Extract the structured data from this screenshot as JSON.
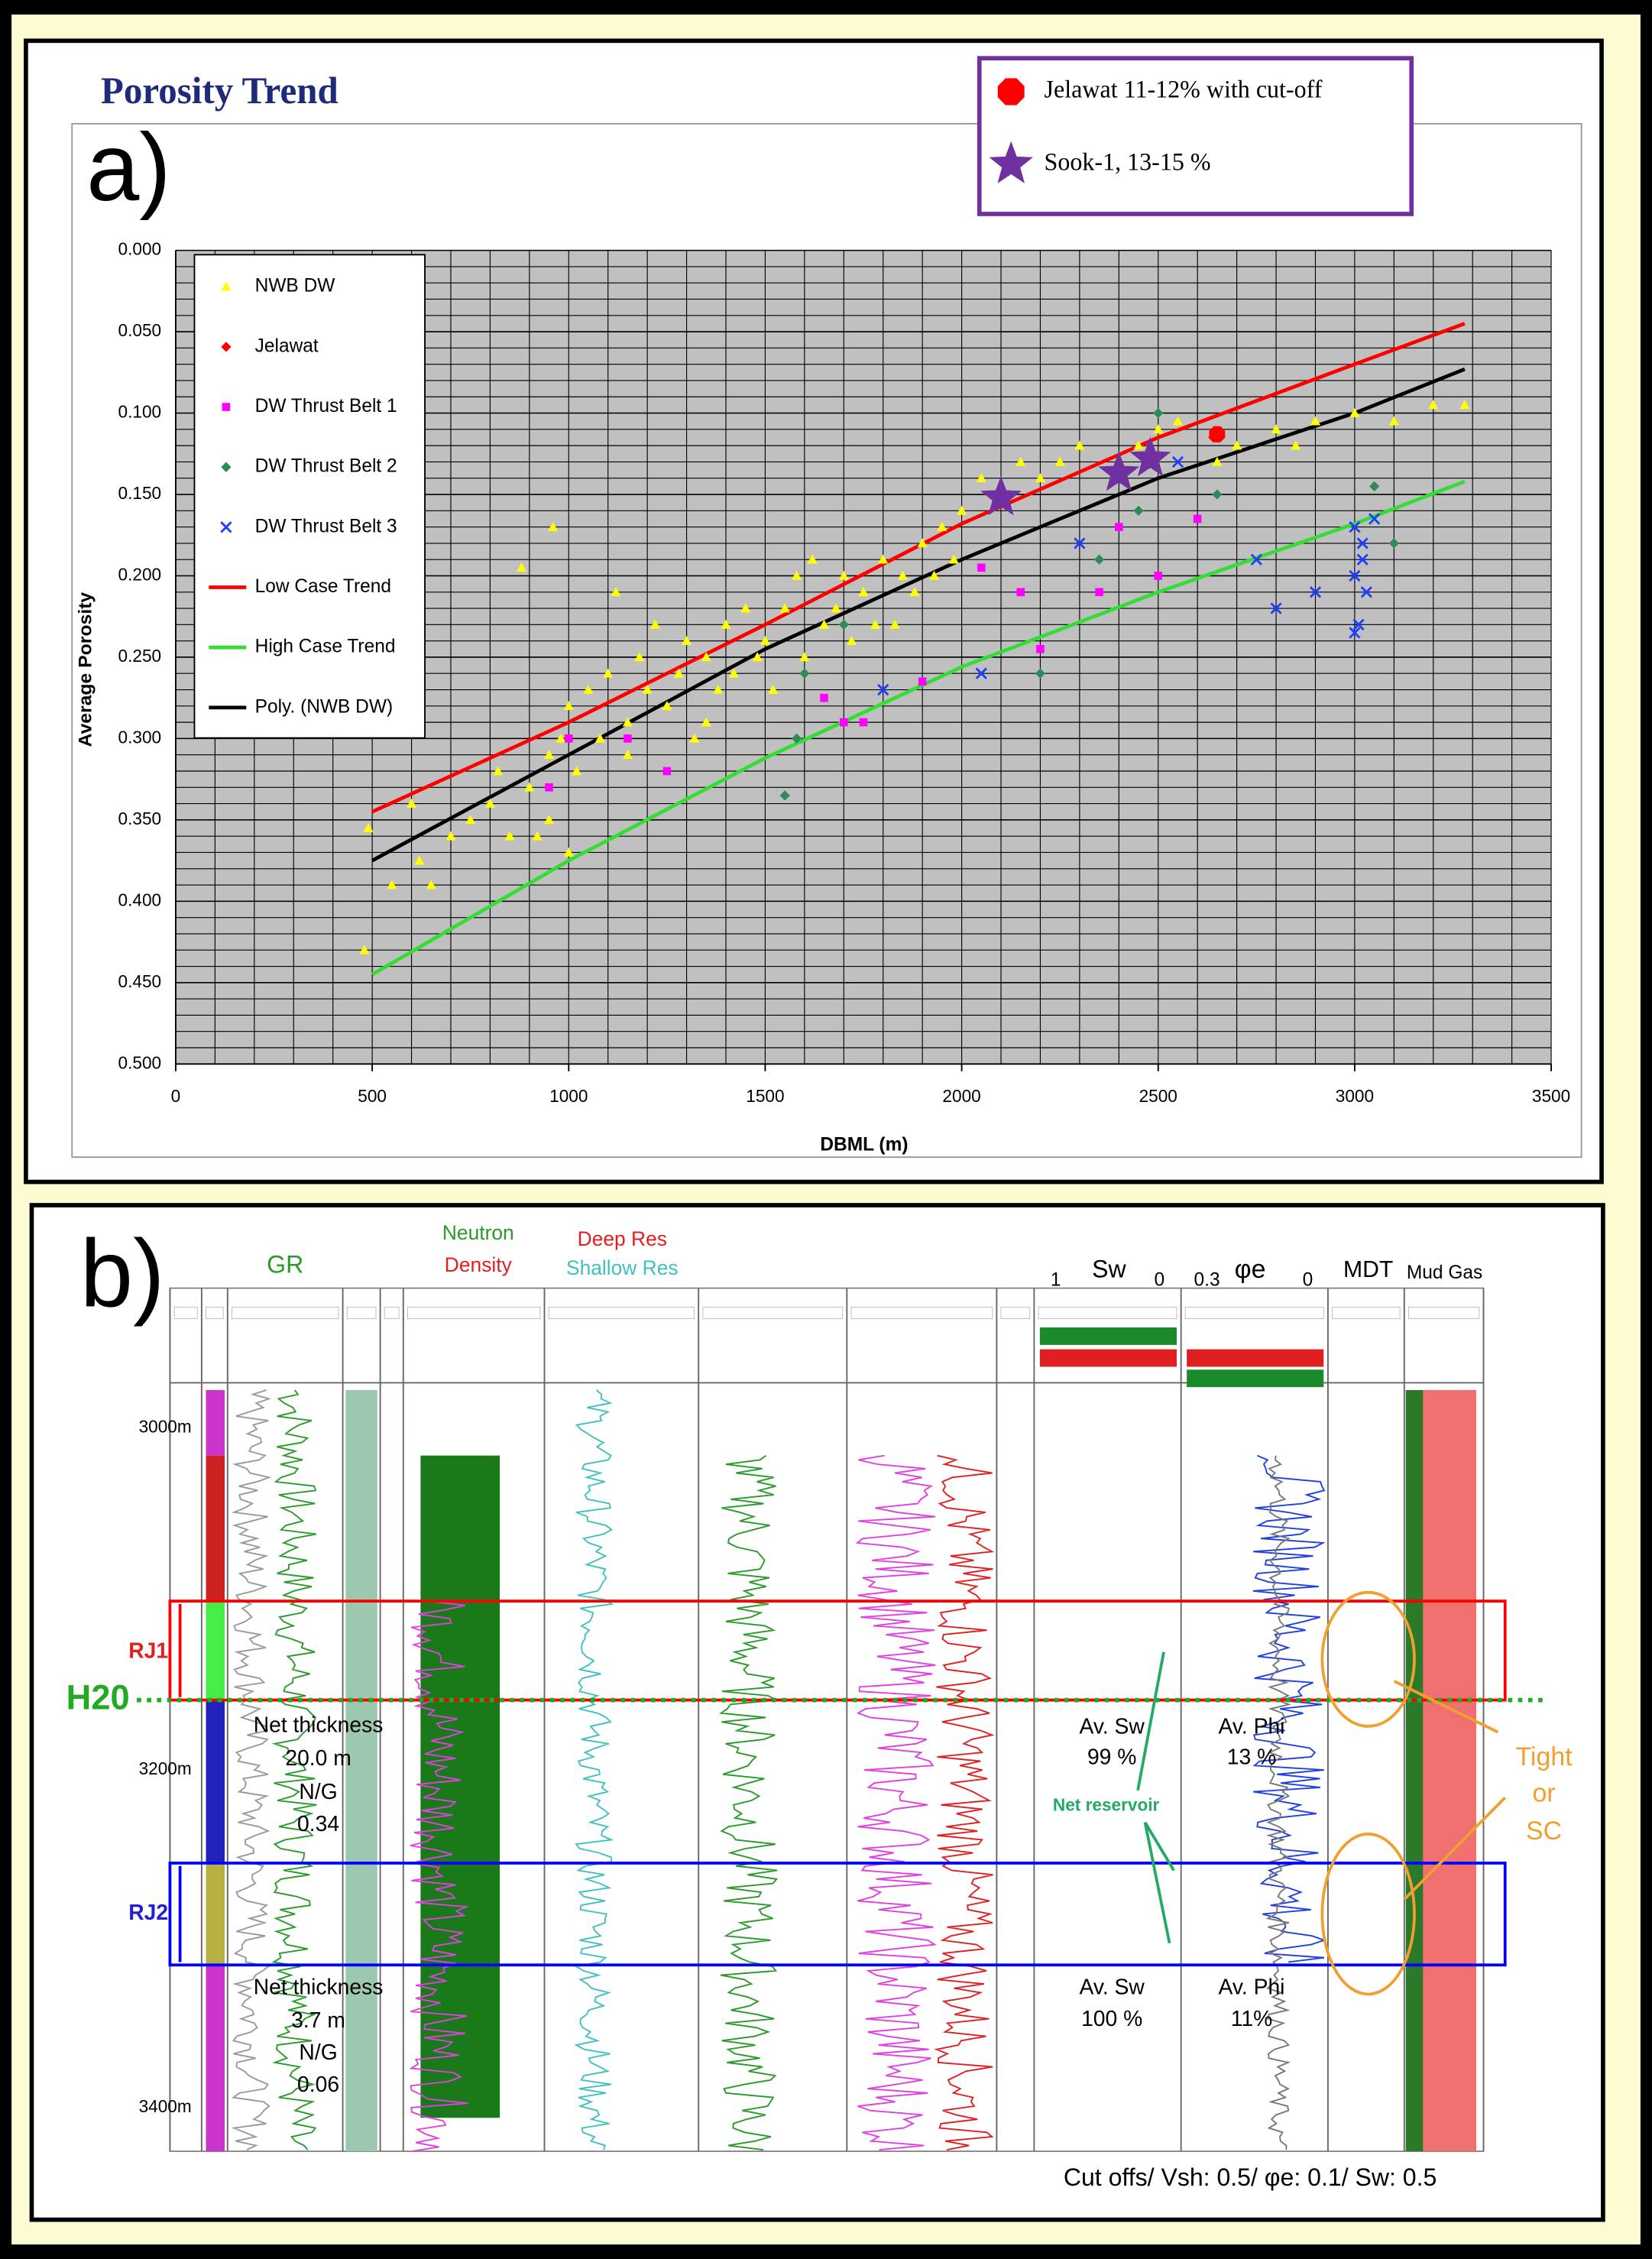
{
  "chart_data": {
    "type": "scatter",
    "panel_label": "a)",
    "title": "Porosity Trend",
    "x_label": "DBML (m)",
    "y_label": "Average Porosity",
    "xlim": [
      0,
      3500
    ],
    "xticks": [
      0,
      500,
      1000,
      1500,
      2000,
      2500,
      3000,
      3500
    ],
    "ylim": [
      0,
      0.5
    ],
    "y_reversed": true,
    "yticks": [
      {
        "value": 0,
        "label": "0.000"
      },
      {
        "value": 0.05,
        "label": "0.050"
      },
      {
        "value": 0.1,
        "label": "0.100"
      },
      {
        "value": 0.15,
        "label": "0.150"
      },
      {
        "value": 0.2,
        "label": "0.200"
      },
      {
        "value": 0.25,
        "label": "0.250"
      },
      {
        "value": 0.3,
        "label": "0.300"
      },
      {
        "value": 0.35,
        "label": "0.350"
      },
      {
        "value": 0.4,
        "label": "0.400"
      },
      {
        "value": 0.45,
        "label": "0.450"
      },
      {
        "value": 0.5,
        "label": "0.500"
      }
    ],
    "grid": true,
    "minor_grid": {
      "x": 100,
      "y": 0.01
    },
    "series": [
      {
        "name": "NWB DW",
        "color": "#ffff00",
        "marker": "triangle",
        "legend": "upper-left",
        "x": [
          480,
          490,
          550,
          600,
          620,
          650,
          700,
          750,
          800,
          820,
          850,
          880,
          900,
          920,
          950,
          960,
          980,
          1000,
          1020,
          1050,
          1080,
          1100,
          1120,
          1150,
          1180,
          1200,
          1220,
          1250,
          1280,
          1300,
          1320,
          1350,
          1380,
          1400,
          1420,
          1450,
          1480,
          1500,
          1520,
          1550,
          1580,
          1600,
          1620,
          1650,
          1680,
          1700,
          1720,
          1750,
          1780,
          1800,
          1830,
          1850,
          1880,
          1900,
          1930,
          1950,
          1980,
          2000,
          2050,
          2100,
          2150,
          2200,
          2250,
          2300,
          2400,
          2450,
          2500,
          2550,
          2650,
          2700,
          2800,
          2850,
          2900,
          3000,
          3100,
          3200,
          3280,
          950,
          1150,
          1350,
          1000
        ],
        "values": [
          0.43,
          0.355,
          0.39,
          0.34,
          0.375,
          0.39,
          0.36,
          0.35,
          0.34,
          0.32,
          0.36,
          0.195,
          0.33,
          0.36,
          0.31,
          0.17,
          0.3,
          0.28,
          0.32,
          0.27,
          0.3,
          0.26,
          0.21,
          0.29,
          0.25,
          0.27,
          0.23,
          0.28,
          0.26,
          0.24,
          0.3,
          0.25,
          0.27,
          0.23,
          0.26,
          0.22,
          0.25,
          0.24,
          0.27,
          0.22,
          0.2,
          0.25,
          0.19,
          0.23,
          0.22,
          0.2,
          0.24,
          0.21,
          0.23,
          0.19,
          0.23,
          0.2,
          0.21,
          0.18,
          0.2,
          0.17,
          0.19,
          0.16,
          0.14,
          0.15,
          0.13,
          0.14,
          0.13,
          0.12,
          0.14,
          0.12,
          0.11,
          0.105,
          0.13,
          0.12,
          0.11,
          0.12,
          0.105,
          0.1,
          0.105,
          0.095,
          0.095,
          0.35,
          0.31,
          0.29,
          0.37
        ]
      },
      {
        "name": "Jelawat",
        "color": "#ff0000",
        "marker": "diamond",
        "legend": "upper-left",
        "x": [
          2640
        ],
        "values": [
          0.115
        ]
      },
      {
        "name": "DW Thrust Belt 1",
        "color": "#ff00ff",
        "marker": "square",
        "legend": "upper-left",
        "x": [
          950,
          1000,
          1150,
          1250,
          1650,
          1700,
          1750,
          1900,
          2050,
          2150,
          2200,
          2350,
          2400,
          2500,
          2600
        ],
        "values": [
          0.33,
          0.3,
          0.3,
          0.32,
          0.275,
          0.29,
          0.29,
          0.265,
          0.195,
          0.21,
          0.245,
          0.21,
          0.17,
          0.2,
          0.165
        ]
      },
      {
        "name": "DW Thrust Belt 2",
        "color": "#2e8b57",
        "marker": "diamond",
        "legend": "upper-left",
        "x": [
          1550,
          1580,
          1600,
          1700,
          2200,
          2350,
          2450,
          2500,
          2650,
          3050,
          3100
        ],
        "values": [
          0.335,
          0.3,
          0.26,
          0.23,
          0.26,
          0.19,
          0.16,
          0.1,
          0.15,
          0.145,
          0.18
        ]
      },
      {
        "name": "DW Thrust Belt 3",
        "color": "#1f3fff",
        "marker": "x",
        "legend": "upper-left",
        "x": [
          1800,
          2050,
          2300,
          2550,
          2750,
          2800,
          2900,
          3000,
          3000,
          3010,
          3020,
          3020,
          3030,
          3050,
          3000
        ],
        "values": [
          0.27,
          0.26,
          0.18,
          0.13,
          0.19,
          0.22,
          0.21,
          0.17,
          0.2,
          0.23,
          0.18,
          0.19,
          0.21,
          0.165,
          0.235
        ]
      },
      {
        "name": "Low Case Trend",
        "color": "#ff0000",
        "marker": "line",
        "legend": "upper-left",
        "x": [
          500,
          1000,
          1500,
          2000,
          2500,
          3000,
          3280
        ],
        "values": [
          0.345,
          0.29,
          0.23,
          0.168,
          0.115,
          0.07,
          0.045
        ]
      },
      {
        "name": "High Case Trend",
        "color": "#33dd33",
        "marker": "line",
        "legend": "upper-left",
        "x": [
          500,
          1000,
          1500,
          2000,
          2500,
          3000,
          3280
        ],
        "values": [
          0.445,
          0.375,
          0.312,
          0.256,
          0.21,
          0.168,
          0.142
        ]
      },
      {
        "name": "Poly. (NWB DW)",
        "color": "#000000",
        "marker": "line",
        "legend": "upper-left",
        "x": [
          500,
          1000,
          1500,
          2000,
          2500,
          3000,
          3280
        ],
        "values": [
          0.375,
          0.31,
          0.245,
          0.19,
          0.14,
          0.1,
          0.073
        ]
      },
      {
        "name": "Jelawat 11-12% with cut-off",
        "color": "#ff0000",
        "marker": "hexagon",
        "legend": "top-right",
        "x": [
          2650
        ],
        "values": [
          0.113
        ]
      },
      {
        "name": "Sook-1, 13-15 %",
        "color": "#7030a0",
        "marker": "star",
        "legend": "top-right",
        "x": [
          2100,
          2400,
          2480
        ],
        "values": [
          0.152,
          0.137,
          0.128
        ]
      }
    ]
  },
  "log_panel": {
    "panel_label": "b)",
    "headers": [
      "GR",
      "Neutron",
      "Density",
      "Deep Res",
      "Shallow Res",
      "1",
      "Sw",
      "0",
      "0.3",
      "φe",
      "0",
      "MDT",
      "Mud Gas"
    ],
    "depths": [
      "3000m",
      "3200m",
      "3400m"
    ],
    "zones": [
      "RJ1",
      "RJ2"
    ],
    "horizon": "H20",
    "upper_net": [
      "Net thickness",
      "20.0 m",
      "N/G",
      "0.34"
    ],
    "lower_net": [
      "Net thickness",
      "3.7 m",
      "N/G",
      "0.06"
    ],
    "upper_sw": [
      "Av. Sw",
      "99 %"
    ],
    "upper_phi": [
      "Av. Phi",
      "13 %"
    ],
    "lower_sw": [
      "Av. Sw",
      "100 %"
    ],
    "lower_phi": [
      "Av. Phi",
      "11%"
    ],
    "net_reservoir": "Net reservoir",
    "tight": [
      "Tight",
      "or",
      "SC"
    ],
    "cutoffs": "Cut offs/ Vsh: 0.5/ φe: 0.1/ Sw: 0.5"
  }
}
